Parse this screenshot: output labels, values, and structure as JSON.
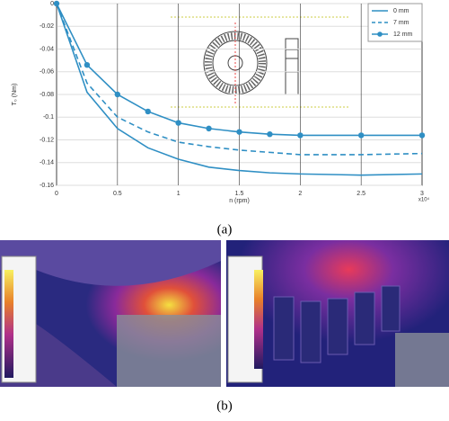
{
  "chart_data": {
    "type": "line",
    "x_label": "n (rpm)",
    "y_label": "T₀ (Nm)",
    "x_multiplier": "x10⁴",
    "x": [
      0,
      0.25,
      0.5,
      0.75,
      1,
      1.25,
      1.5,
      1.75,
      2,
      2.5,
      3
    ],
    "series": [
      {
        "name": "0 mm",
        "color": "#2f8fc4",
        "style": "solid",
        "markers": false,
        "values": [
          0,
          -0.078,
          -0.11,
          -0.127,
          -0.137,
          -0.144,
          -0.147,
          -0.149,
          -0.15,
          -0.151,
          -0.15
        ]
      },
      {
        "name": "7 mm",
        "color": "#2f8fc4",
        "style": "dashed",
        "markers": false,
        "values": [
          0,
          -0.07,
          -0.1,
          -0.113,
          -0.122,
          -0.126,
          -0.129,
          -0.131,
          -0.133,
          -0.133,
          -0.132
        ]
      },
      {
        "name": "12 mm",
        "color": "#2f8fc4",
        "style": "solid",
        "markers": true,
        "values": [
          0,
          -0.054,
          -0.08,
          -0.095,
          -0.105,
          -0.11,
          -0.113,
          -0.115,
          -0.116,
          -0.116,
          -0.116
        ]
      }
    ],
    "xlim": [
      0,
      3
    ],
    "xticks": [
      0,
      0.5,
      1,
      1.5,
      2,
      2.5,
      3
    ],
    "ylim": [
      -0.16,
      0
    ],
    "yticks": [
      0,
      -0.02,
      -0.04,
      -0.06,
      -0.08,
      -0.1,
      -0.12,
      -0.14,
      -0.16
    ],
    "grid": true,
    "legend": "top-right"
  },
  "captions": [
    "(a)",
    "(b)"
  ]
}
